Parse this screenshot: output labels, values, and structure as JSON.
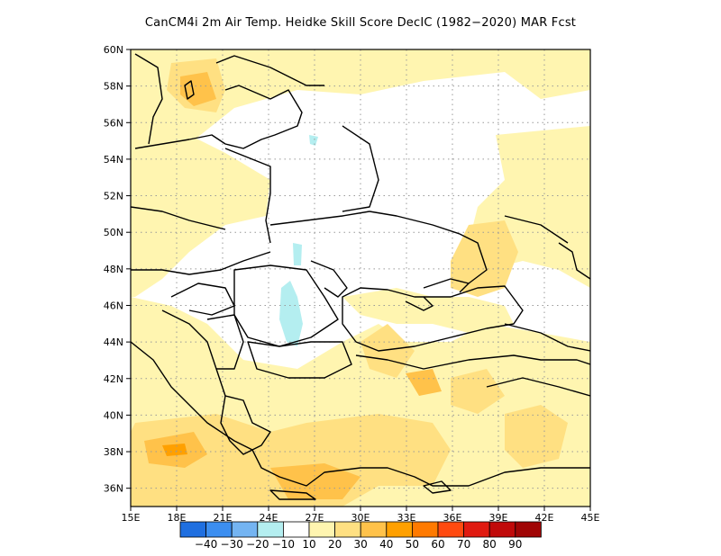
{
  "title": "CanCM4i  2m Air Temp. Heidke Skill Score DecIC (1982−2020) MAR Fcst",
  "axes": {
    "lon_labels": [
      "15E",
      "18E",
      "21E",
      "24E",
      "27E",
      "30E",
      "33E",
      "36E",
      "39E",
      "42E",
      "45E"
    ],
    "lat_labels": [
      "36N",
      "38N",
      "40N",
      "42N",
      "44N",
      "46N",
      "48N",
      "50N",
      "52N",
      "54N",
      "56N",
      "58N",
      "60N"
    ]
  },
  "colorbar": {
    "colors": [
      "#1f6fe0",
      "#3c8ef0",
      "#74b4f2",
      "#b4eef0",
      "#ffffff",
      "#fff5b0",
      "#ffe082",
      "#ffc24a",
      "#ffa000",
      "#ff7a00",
      "#ff4a10",
      "#e01a10",
      "#c00a0a",
      "#a00505"
    ],
    "labels": [
      "−40",
      "−30",
      "−20",
      "−10",
      "10",
      "20",
      "30",
      "40",
      "50",
      "60",
      "70",
      "80",
      "90"
    ]
  },
  "chart_data": {
    "type": "heatmap",
    "title": "CanCM4i  2m Air Temp. Heidke Skill Score DecIC (1982−2020) MAR Fcst",
    "lon_range": [
      15,
      45
    ],
    "lat_range": [
      35,
      60
    ],
    "lon_ticks": [
      15,
      18,
      21,
      24,
      27,
      30,
      33,
      36,
      39,
      42,
      45
    ],
    "lat_ticks": [
      36,
      38,
      40,
      42,
      44,
      46,
      48,
      50,
      52,
      54,
      56,
      58,
      60
    ],
    "grid": "dotted",
    "colorbar_levels": [
      -40,
      -30,
      -20,
      -10,
      10,
      20,
      30,
      40,
      50,
      60,
      70,
      80,
      90
    ],
    "colorbar_colors": [
      "#1f6fe0",
      "#3c8ef0",
      "#74b4f2",
      "#b4eef0",
      "#ffffff",
      "#fff5b0",
      "#ffe082",
      "#ffc24a",
      "#ffa000",
      "#ff7a00",
      "#ff4a10",
      "#e01a10",
      "#c00a0a",
      "#a00505"
    ]
  }
}
